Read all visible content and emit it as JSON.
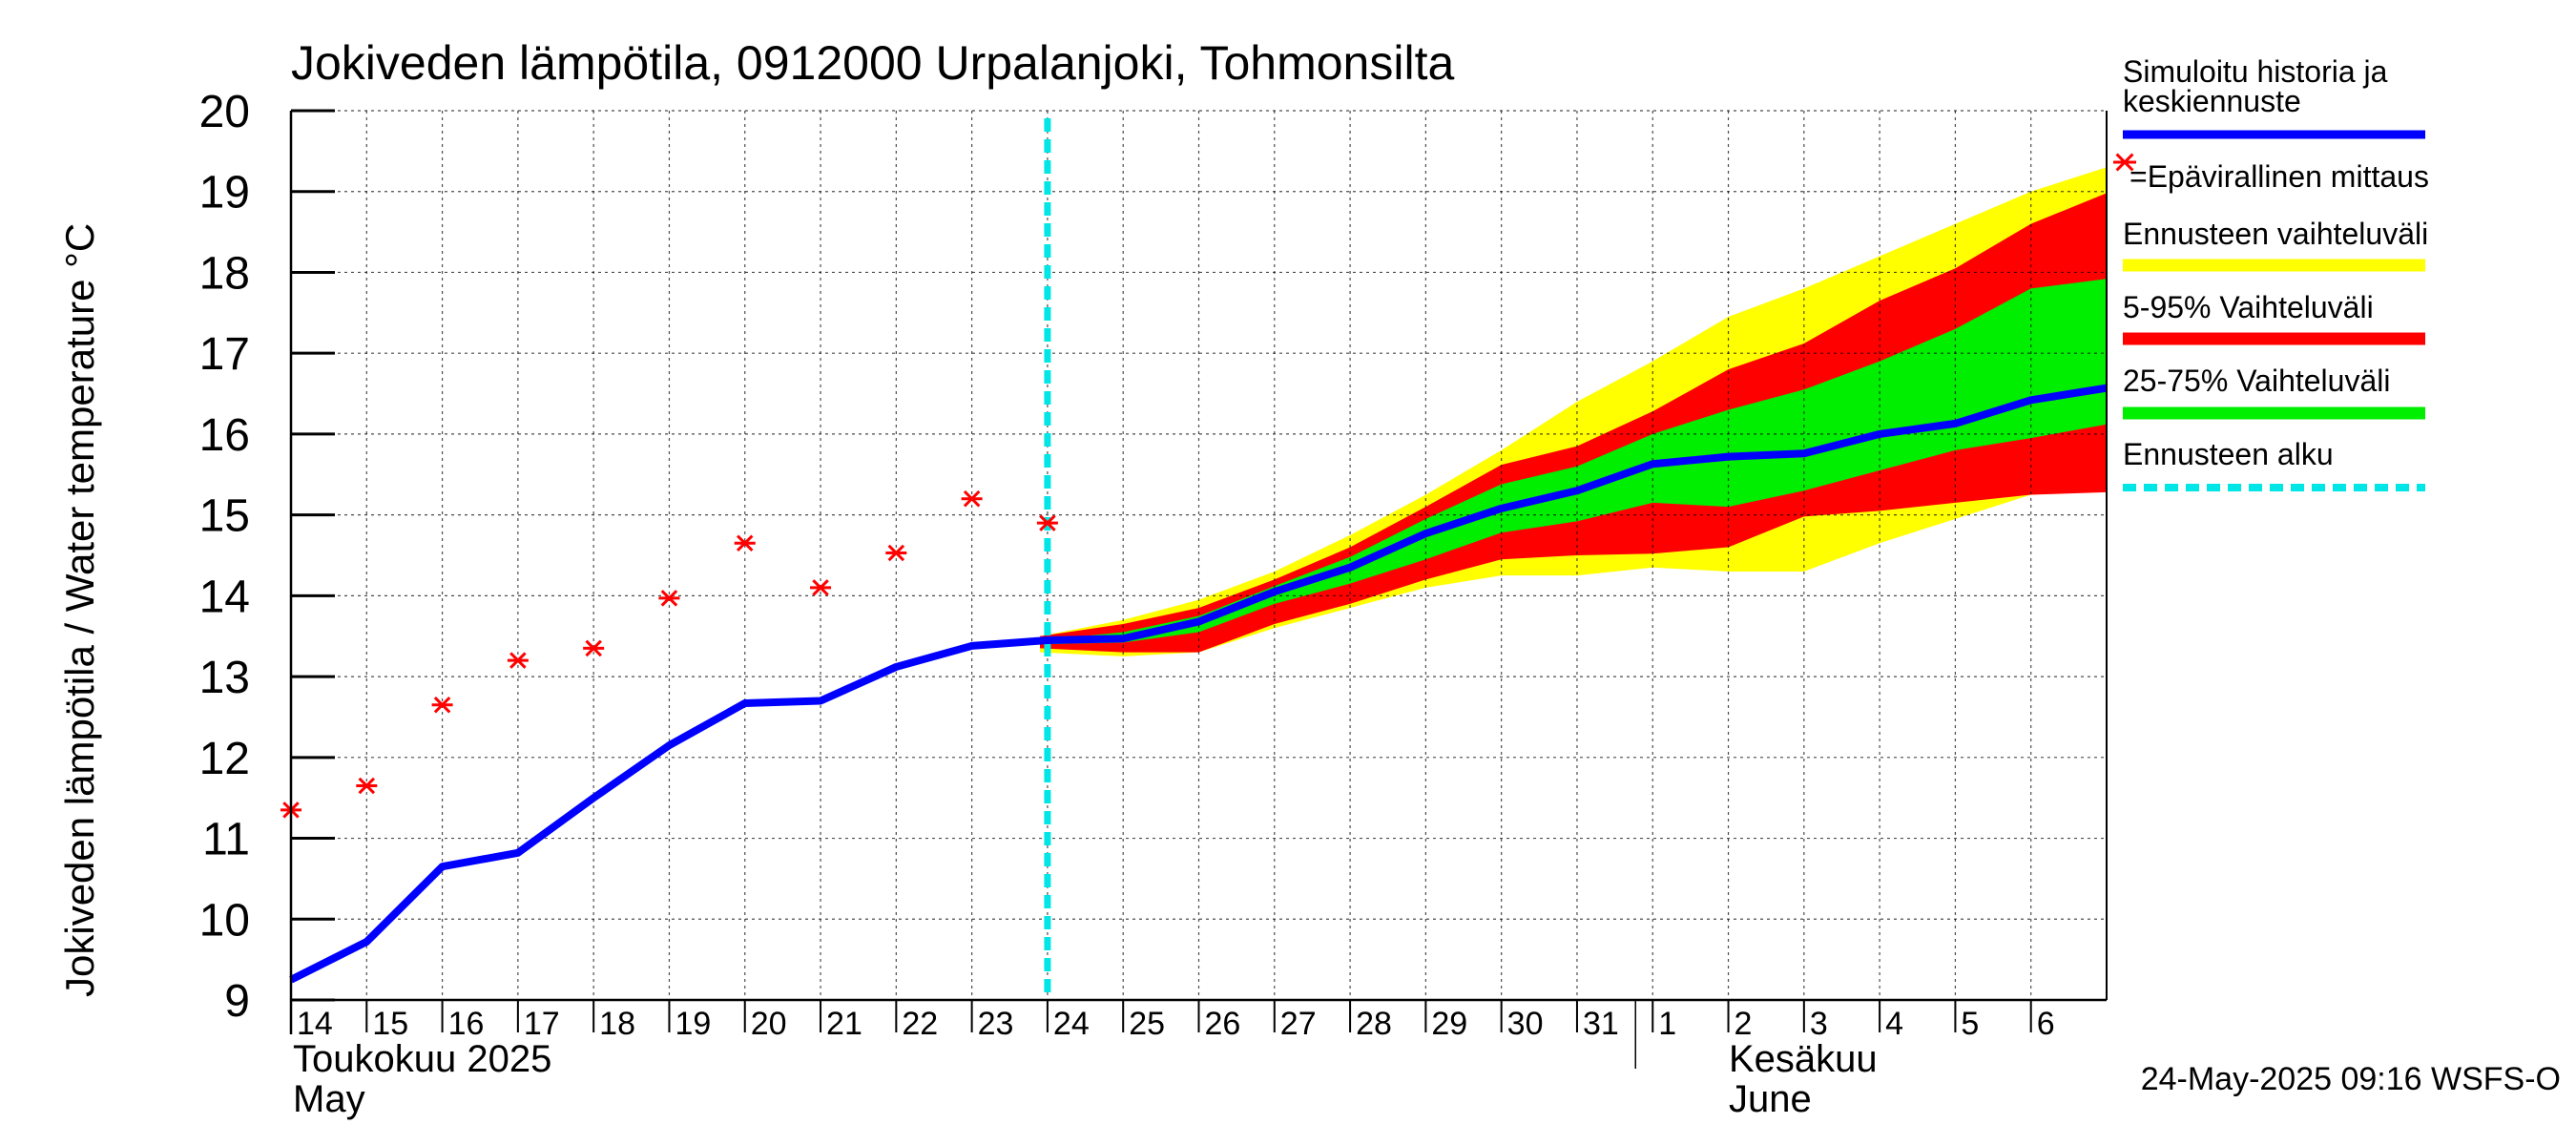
{
  "chart_data": {
    "type": "line",
    "title": "Jokiveden lämpötila, 0912000 Urpalanjoki, Tohmonsilta",
    "ylabel": "Jokiveden lämpötila / Water temperature   °C",
    "ylim": [
      9,
      20
    ],
    "yticks": [
      9,
      10,
      11,
      12,
      13,
      14,
      15,
      16,
      17,
      18,
      19,
      20
    ],
    "x_start_day": 14,
    "x_end_day": 38,
    "xticks": [
      {
        "day": 14,
        "label": "14"
      },
      {
        "day": 15,
        "label": "15"
      },
      {
        "day": 16,
        "label": "16"
      },
      {
        "day": 17,
        "label": "17"
      },
      {
        "day": 18,
        "label": "18"
      },
      {
        "day": 19,
        "label": "19"
      },
      {
        "day": 20,
        "label": "20"
      },
      {
        "day": 21,
        "label": "21"
      },
      {
        "day": 22,
        "label": "22"
      },
      {
        "day": 23,
        "label": "23"
      },
      {
        "day": 24,
        "label": "24"
      },
      {
        "day": 25,
        "label": "25"
      },
      {
        "day": 26,
        "label": "26"
      },
      {
        "day": 27,
        "label": "27"
      },
      {
        "day": 28,
        "label": "28"
      },
      {
        "day": 29,
        "label": "29"
      },
      {
        "day": 30,
        "label": "30"
      },
      {
        "day": 31,
        "label": "31"
      },
      {
        "day": 32,
        "label": "1"
      },
      {
        "day": 33,
        "label": "2"
      },
      {
        "day": 34,
        "label": "3"
      },
      {
        "day": 35,
        "label": "4"
      },
      {
        "day": 36,
        "label": "5"
      },
      {
        "day": 37,
        "label": "6"
      }
    ],
    "month_labels": [
      {
        "line1": "Toukokuu  2025",
        "line2": "May"
      },
      {
        "line1": "Kesäkuu",
        "line2": "June"
      }
    ],
    "forecast_start_day": 24.0,
    "series": [
      {
        "name": "Simuloitu historia ja keskiennuste",
        "color": "#0000ff",
        "x": [
          14,
          15,
          16,
          17,
          18,
          19,
          20,
          21,
          22,
          23,
          24,
          25,
          26,
          27,
          28,
          29,
          30,
          31,
          32,
          33,
          34,
          35,
          36,
          37,
          38
        ],
        "y": [
          9.25,
          9.72,
          10.65,
          10.82,
          11.5,
          12.15,
          12.67,
          12.7,
          13.12,
          13.38,
          13.45,
          13.47,
          13.68,
          14.05,
          14.35,
          14.77,
          15.08,
          15.3,
          15.63,
          15.72,
          15.76,
          16.0,
          16.13,
          16.42,
          16.57
        ]
      },
      {
        "name": "=Epävirallinen mittaus",
        "color": "#ff0000",
        "type": "scatter",
        "x": [
          14,
          15,
          16,
          17,
          18,
          19,
          20,
          21,
          22,
          23,
          24
        ],
        "y": [
          11.35,
          11.65,
          12.65,
          13.2,
          13.35,
          13.97,
          14.65,
          14.1,
          14.53,
          15.2,
          14.9
        ]
      }
    ],
    "bands": [
      {
        "name": "Ennusteen vaihteluväli",
        "color": "#ffff00",
        "x": [
          23.9,
          25,
          26,
          27,
          28,
          29,
          30,
          31,
          32,
          33,
          34,
          35,
          36,
          37,
          38
        ],
        "upper": [
          13.5,
          13.7,
          13.95,
          14.3,
          14.75,
          15.25,
          15.8,
          16.4,
          16.9,
          17.45,
          17.8,
          18.2,
          18.6,
          19.0,
          19.3
        ],
        "lower": [
          13.3,
          13.25,
          13.3,
          13.6,
          13.85,
          14.1,
          14.25,
          14.25,
          14.35,
          14.3,
          14.3,
          14.65,
          14.95,
          15.25,
          15.3
        ]
      },
      {
        "name": "5-95% Vaihteluväli",
        "color": "#ff0000",
        "x": [
          23.9,
          25,
          26,
          27,
          28,
          29,
          30,
          31,
          32,
          33,
          34,
          35,
          36,
          37,
          38
        ],
        "upper": [
          13.5,
          13.65,
          13.85,
          14.2,
          14.6,
          15.1,
          15.62,
          15.85,
          16.28,
          16.8,
          17.12,
          17.65,
          18.05,
          18.6,
          18.98
        ],
        "lower": [
          13.35,
          13.3,
          13.3,
          13.65,
          13.9,
          14.2,
          14.45,
          14.5,
          14.52,
          14.6,
          14.98,
          15.05,
          15.15,
          15.25,
          15.28
        ]
      },
      {
        "name": "25-75% Vaihteluväli",
        "color": "#00ee00",
        "x": [
          23.9,
          25,
          26,
          27,
          28,
          29,
          30,
          31,
          32,
          33,
          34,
          35,
          36,
          37,
          38
        ],
        "upper": [
          13.45,
          13.55,
          13.75,
          14.12,
          14.48,
          14.95,
          15.38,
          15.6,
          16.0,
          16.3,
          16.55,
          16.9,
          17.3,
          17.8,
          17.92
        ],
        "lower": [
          13.4,
          13.42,
          13.55,
          13.9,
          14.15,
          14.45,
          14.78,
          14.92,
          15.15,
          15.1,
          15.3,
          15.55,
          15.8,
          15.95,
          16.12
        ]
      }
    ],
    "legend": [
      {
        "label": "Simuloitu historia ja",
        "label2": "keskiennuste",
        "color": "#0000ff",
        "style": "line"
      },
      {
        "label": "=Epävirallinen mittaus",
        "color": "#ff0000",
        "style": "star"
      },
      {
        "label": "Ennusteen vaihteluväli",
        "color": "#ffff00",
        "style": "line"
      },
      {
        "label": "5-95% Vaihteluväli",
        "color": "#ff0000",
        "style": "line"
      },
      {
        "label": "25-75% Vaihteluväli",
        "color": "#00ee00",
        "style": "line"
      },
      {
        "label": "Ennusteen alku",
        "color": "#00e5e5",
        "style": "dashed"
      }
    ],
    "legend_placement": "right",
    "grid": true,
    "footer": "24-May-2025 09:16 WSFS-O"
  }
}
